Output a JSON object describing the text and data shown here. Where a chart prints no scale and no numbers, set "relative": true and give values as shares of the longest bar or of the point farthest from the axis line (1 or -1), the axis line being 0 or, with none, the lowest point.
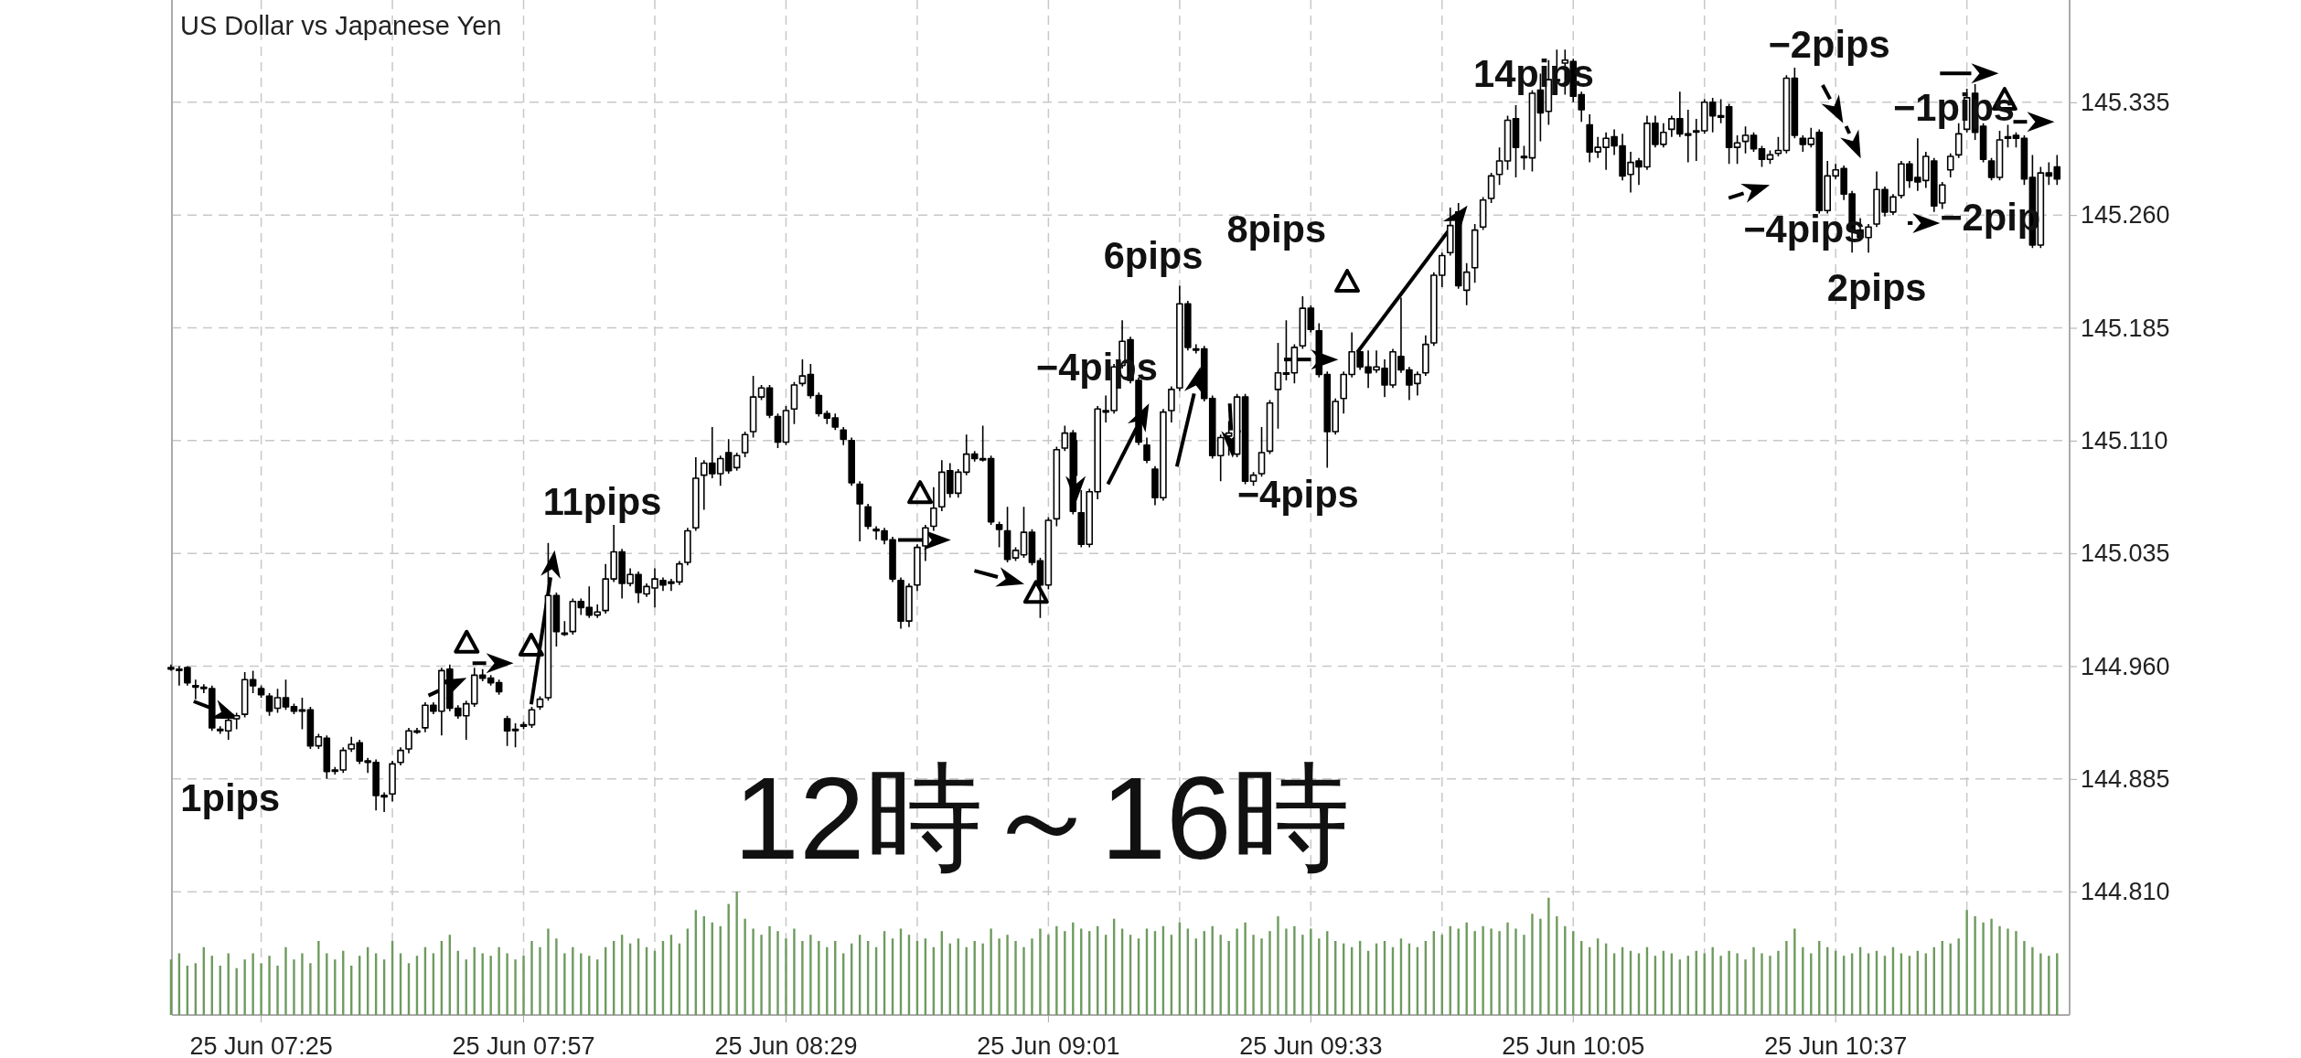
{
  "chart_data": [
    {
      "type": "candlestick",
      "title": "US Dollar vs Japanese Yen",
      "categories": [
        null,
        null,
        null,
        null,
        null,
        null,
        null,
        null,
        null,
        null,
        null,
        "25 Jun 07:25",
        null,
        null,
        null,
        null,
        null,
        null,
        null,
        null,
        null,
        null,
        null,
        null,
        null,
        null,
        null,
        null,
        null,
        null,
        null,
        null,
        null,
        null,
        null,
        null,
        null,
        null,
        null,
        null,
        null,
        null,
        null,
        "25 Jun 07:57",
        null,
        null,
        null,
        null,
        null,
        null,
        null,
        null,
        null,
        null,
        null,
        null,
        null,
        null,
        null,
        null,
        null,
        null,
        null,
        null,
        null,
        null,
        null,
        null,
        null,
        null,
        null,
        null,
        null,
        null,
        null,
        "25 Jun 08:29",
        null,
        null,
        null,
        null,
        null,
        null,
        null,
        null,
        null,
        null,
        null,
        null,
        null,
        null,
        null,
        null,
        null,
        null,
        null,
        null,
        null,
        null,
        null,
        null,
        null,
        null,
        null,
        null,
        null,
        null,
        null,
        "25 Jun 09:01",
        null,
        null,
        null,
        null,
        null,
        null,
        null,
        null,
        null,
        null,
        null,
        null,
        null,
        null,
        null,
        null,
        null,
        null,
        null,
        null,
        null,
        null,
        null,
        null,
        null,
        null,
        null,
        null,
        null,
        null,
        null,
        "25 Jun 09:33",
        null,
        null,
        null,
        null,
        null,
        null,
        null,
        null,
        null,
        null,
        null,
        null,
        null,
        null,
        null,
        null,
        null,
        null,
        null,
        null,
        null,
        null,
        null,
        null,
        null,
        null,
        null,
        null,
        null,
        null,
        null,
        "25 Jun 10:05",
        null,
        null,
        null,
        null,
        null,
        null,
        null,
        null,
        null,
        null,
        null,
        null,
        null,
        null,
        null,
        null,
        null,
        null,
        null,
        null,
        null,
        null,
        null,
        null,
        null,
        null,
        null,
        null,
        null,
        null,
        null,
        "25 Jun 10:37",
        null,
        null,
        null,
        null,
        null,
        null,
        null,
        null,
        null,
        null,
        null,
        null,
        null,
        null,
        null,
        null,
        null,
        null,
        null,
        null,
        null,
        null,
        null,
        null,
        null,
        null,
        null
      ],
      "ohlc": [
        [
          144.959,
          144.961,
          144.957,
          144.959
        ],
        [
          144.958,
          144.96,
          144.947,
          144.958
        ],
        [
          144.959,
          144.96,
          144.947,
          144.949
        ],
        [
          144.947,
          144.951,
          144.938,
          144.947
        ],
        [
          144.946,
          144.948,
          144.942,
          144.946
        ],
        [
          144.945,
          144.947,
          144.917,
          144.919
        ],
        [
          144.918,
          144.92,
          144.915,
          144.918
        ],
        [
          144.917,
          144.926,
          144.911,
          144.924
        ],
        [
          144.925,
          144.929,
          144.918,
          144.927
        ],
        [
          144.928,
          144.956,
          144.926,
          144.951
        ],
        [
          144.951,
          144.957,
          144.942,
          144.947
        ],
        [
          144.945,
          144.947,
          144.939,
          144.941
        ],
        [
          144.94,
          144.942,
          144.927,
          144.93
        ],
        [
          144.932,
          144.945,
          144.929,
          144.939
        ],
        [
          144.939,
          144.951,
          144.931,
          144.933
        ],
        [
          144.933,
          144.935,
          144.928,
          144.93
        ],
        [
          144.931,
          144.939,
          144.918,
          144.931
        ],
        [
          144.931,
          144.933,
          144.905,
          144.907
        ],
        [
          144.907,
          144.915,
          144.905,
          144.913
        ],
        [
          144.912,
          144.914,
          144.885,
          144.89
        ],
        [
          144.891,
          144.893,
          144.888,
          144.891
        ],
        [
          144.891,
          144.906,
          144.889,
          144.904
        ],
        [
          144.905,
          144.913,
          144.903,
          144.908
        ],
        [
          144.909,
          144.911,
          144.895,
          144.897
        ],
        [
          144.897,
          144.899,
          144.889,
          144.897
        ],
        [
          144.896,
          144.898,
          144.864,
          144.874
        ],
        [
          144.874,
          144.876,
          144.863,
          144.874
        ],
        [
          144.875,
          144.897,
          144.87,
          144.895
        ],
        [
          144.896,
          144.906,
          144.894,
          144.904
        ],
        [
          144.905,
          144.919,
          144.902,
          144.917
        ],
        [
          144.917,
          144.919,
          144.915,
          144.917
        ],
        [
          144.919,
          144.936,
          144.916,
          144.934
        ],
        [
          144.934,
          144.936,
          144.928,
          144.93
        ],
        [
          144.93,
          144.959,
          144.914,
          144.957
        ],
        [
          144.958,
          144.961,
          144.93,
          144.932
        ],
        [
          144.932,
          144.934,
          144.925,
          144.927
        ],
        [
          144.927,
          144.937,
          144.911,
          144.935
        ],
        [
          144.935,
          144.959,
          144.933,
          144.954
        ],
        [
          144.954,
          144.958,
          144.95,
          144.952
        ],
        [
          144.952,
          144.954,
          144.947,
          144.949
        ],
        [
          144.949,
          144.951,
          144.941,
          144.943
        ],
        [
          144.925,
          144.927,
          144.907,
          144.917
        ],
        [
          144.918,
          144.922,
          144.906,
          144.918
        ],
        [
          144.921,
          144.923,
          144.918,
          144.92
        ],
        [
          144.921,
          144.933,
          144.919,
          144.931
        ],
        [
          144.933,
          144.94,
          144.931,
          144.938
        ],
        [
          144.939,
          145.042,
          144.937,
          145.007
        ],
        [
          145.007,
          145.009,
          144.973,
          144.983
        ],
        [
          144.982,
          144.99,
          144.98,
          144.982
        ],
        [
          144.983,
          145.005,
          144.981,
          145.003
        ],
        [
          145.003,
          145.005,
          144.994,
          144.999
        ],
        [
          144.999,
          145.013,
          144.992,
          144.994
        ],
        [
          144.994,
          145.001,
          144.992,
          144.996
        ],
        [
          144.997,
          145.028,
          144.995,
          145.018
        ],
        [
          145.018,
          145.054,
          145.016,
          145.036
        ],
        [
          145.036,
          145.038,
          145.005,
          145.015
        ],
        [
          145.015,
          145.025,
          145.013,
          145.021
        ],
        [
          145.021,
          145.023,
          145.002,
          145.009
        ],
        [
          145.008,
          145.015,
          145.006,
          145.013
        ],
        [
          145.012,
          145.025,
          144.999,
          145.018
        ],
        [
          145.017,
          145.019,
          145.01,
          145.014
        ],
        [
          145.015,
          145.018,
          145.01,
          145.016
        ],
        [
          145.016,
          145.03,
          145.014,
          145.028
        ],
        [
          145.029,
          145.052,
          145.027,
          145.05
        ],
        [
          145.052,
          145.099,
          145.05,
          145.085
        ],
        [
          145.087,
          145.097,
          145.064,
          145.095
        ],
        [
          145.095,
          145.119,
          145.085,
          145.088
        ],
        [
          145.088,
          145.1,
          145.08,
          145.098
        ],
        [
          145.102,
          145.111,
          145.088,
          145.09
        ],
        [
          145.092,
          145.102,
          145.09,
          145.1
        ],
        [
          145.102,
          145.116,
          145.099,
          145.114
        ],
        [
          145.116,
          145.153,
          145.112,
          145.139
        ],
        [
          145.139,
          145.147,
          145.137,
          145.145
        ],
        [
          145.145,
          145.147,
          145.125,
          145.127
        ],
        [
          145.126,
          145.128,
          145.105,
          145.109
        ],
        [
          145.109,
          145.133,
          145.107,
          145.13
        ],
        [
          145.131,
          145.149,
          145.121,
          145.147
        ],
        [
          145.148,
          145.164,
          145.146,
          145.153
        ],
        [
          145.154,
          145.161,
          145.138,
          145.14
        ],
        [
          145.14,
          145.142,
          145.126,
          145.128
        ],
        [
          145.128,
          145.13,
          145.121,
          145.125
        ],
        [
          145.125,
          145.128,
          145.117,
          145.119
        ],
        [
          145.117,
          145.119,
          145.107,
          145.111
        ],
        [
          145.11,
          145.112,
          145.08,
          145.082
        ],
        [
          145.081,
          145.083,
          145.043,
          145.068
        ],
        [
          145.066,
          145.068,
          145.051,
          145.053
        ],
        [
          145.051,
          145.053,
          145.044,
          145.05
        ],
        [
          145.05,
          145.052,
          145.041,
          145.044
        ],
        [
          145.044,
          145.046,
          145.016,
          145.018
        ],
        [
          145.017,
          145.019,
          144.985,
          144.99
        ],
        [
          144.99,
          145.015,
          144.986,
          145.013
        ],
        [
          145.014,
          145.041,
          145.01,
          145.039
        ],
        [
          145.04,
          145.054,
          145.03,
          145.052
        ],
        [
          145.053,
          145.079,
          145.05,
          145.065
        ],
        [
          145.066,
          145.097,
          145.063,
          145.089
        ],
        [
          145.09,
          145.095,
          145.072,
          145.075
        ],
        [
          145.075,
          145.091,
          145.072,
          145.089
        ],
        [
          145.089,
          145.114,
          145.087,
          145.101
        ],
        [
          145.101,
          145.103,
          145.096,
          145.098
        ],
        [
          145.098,
          145.12,
          145.096,
          145.098
        ],
        [
          145.098,
          145.1,
          145.054,
          145.056
        ],
        [
          145.054,
          145.056,
          145.039,
          145.051
        ],
        [
          145.05,
          145.066,
          145.029,
          145.031
        ],
        [
          145.032,
          145.039,
          145.03,
          145.037
        ],
        [
          145.034,
          145.066,
          145.032,
          145.049
        ],
        [
          145.049,
          145.051,
          145.027,
          145.029
        ],
        [
          145.03,
          145.032,
          144.992,
          145.014
        ],
        [
          145.014,
          145.059,
          145.011,
          145.057
        ],
        [
          145.058,
          145.106,
          145.053,
          145.104
        ],
        [
          145.105,
          145.12,
          145.103,
          145.115
        ],
        [
          145.115,
          145.117,
          145.061,
          145.063
        ],
        [
          145.062,
          145.077,
          145.039,
          145.041
        ],
        [
          145.041,
          145.078,
          145.039,
          145.076
        ],
        [
          145.076,
          145.133,
          145.071,
          145.131
        ],
        [
          145.129,
          145.14,
          145.122,
          145.13
        ],
        [
          145.13,
          145.161,
          145.128,
          145.159
        ],
        [
          145.16,
          145.19,
          145.158,
          145.176
        ],
        [
          145.177,
          145.179,
          145.148,
          145.15
        ],
        [
          145.15,
          145.152,
          145.107,
          145.109
        ],
        [
          145.107,
          145.112,
          145.095,
          145.097
        ],
        [
          145.091,
          145.093,
          145.067,
          145.072
        ],
        [
          145.072,
          145.131,
          145.07,
          145.129
        ],
        [
          145.13,
          145.146,
          145.122,
          145.144
        ],
        [
          145.145,
          145.213,
          145.143,
          145.201
        ],
        [
          145.201,
          145.203,
          145.17,
          145.172
        ],
        [
          145.171,
          145.174,
          145.168,
          145.171
        ],
        [
          145.171,
          145.173,
          145.136,
          145.138
        ],
        [
          145.138,
          145.14,
          145.098,
          145.1
        ],
        [
          145.1,
          145.114,
          145.083,
          145.112
        ],
        [
          145.113,
          145.123,
          145.1,
          145.115
        ],
        [
          145.101,
          145.141,
          145.099,
          145.139
        ],
        [
          145.139,
          145.141,
          145.081,
          145.083
        ],
        [
          145.083,
          145.089,
          145.08,
          145.087
        ],
        [
          145.088,
          145.119,
          145.086,
          145.102
        ],
        [
          145.103,
          145.137,
          145.101,
          145.135
        ],
        [
          145.144,
          145.175,
          145.118,
          145.155
        ],
        [
          145.155,
          145.19,
          145.15,
          145.155
        ],
        [
          145.155,
          145.174,
          145.148,
          145.172
        ],
        [
          145.173,
          145.206,
          145.171,
          145.198
        ],
        [
          145.198,
          145.2,
          145.182,
          145.184
        ],
        [
          145.183,
          145.188,
          145.152,
          145.154
        ],
        [
          145.154,
          145.156,
          145.092,
          145.116
        ],
        [
          145.116,
          145.138,
          145.114,
          145.136
        ],
        [
          145.138,
          145.156,
          145.128,
          145.154
        ],
        [
          145.154,
          145.182,
          145.152,
          145.169
        ],
        [
          145.169,
          145.171,
          145.157,
          145.159
        ],
        [
          145.159,
          145.17,
          145.145,
          145.155
        ],
        [
          145.157,
          145.17,
          145.155,
          145.159
        ],
        [
          145.158,
          145.164,
          145.139,
          145.147
        ],
        [
          145.147,
          145.171,
          145.145,
          145.169
        ],
        [
          145.166,
          145.205,
          145.155,
          145.157
        ],
        [
          145.157,
          145.159,
          145.137,
          145.147
        ],
        [
          145.148,
          145.156,
          145.14,
          145.154
        ],
        [
          145.155,
          145.18,
          145.153,
          145.174
        ],
        [
          145.175,
          145.222,
          145.173,
          145.22
        ],
        [
          145.22,
          145.235,
          145.212,
          145.233
        ],
        [
          145.235,
          145.265,
          145.233,
          145.253
        ],
        [
          145.262,
          145.268,
          145.211,
          145.213
        ],
        [
          145.21,
          145.228,
          145.2,
          145.222
        ],
        [
          145.225,
          145.254,
          145.215,
          145.25
        ],
        [
          145.252,
          145.272,
          145.25,
          145.27
        ],
        [
          145.271,
          145.288,
          145.268,
          145.286
        ],
        [
          145.287,
          145.305,
          145.28,
          145.296
        ],
        [
          145.296,
          145.326,
          145.29,
          145.323
        ],
        [
          145.324,
          145.333,
          145.285,
          145.305
        ],
        [
          145.299,
          145.306,
          145.29,
          145.299
        ],
        [
          145.298,
          145.343,
          145.289,
          145.341
        ],
        [
          145.343,
          145.354,
          145.309,
          145.328
        ],
        [
          145.329,
          145.363,
          145.32,
          145.35
        ],
        [
          145.35,
          145.37,
          145.34,
          145.349
        ],
        [
          145.361,
          145.37,
          145.34,
          145.363
        ],
        [
          145.362,
          145.364,
          145.335,
          145.339
        ],
        [
          145.34,
          145.342,
          145.322,
          145.33
        ],
        [
          145.32,
          145.327,
          145.295,
          145.302
        ],
        [
          145.302,
          145.312,
          145.298,
          145.305
        ],
        [
          145.305,
          145.315,
          145.29,
          145.311
        ],
        [
          145.312,
          145.317,
          145.3,
          145.306
        ],
        [
          145.306,
          145.314,
          145.283,
          145.286
        ],
        [
          145.287,
          145.302,
          145.275,
          145.295
        ],
        [
          145.296,
          145.298,
          145.28,
          145.292
        ],
        [
          145.292,
          145.326,
          145.29,
          145.321
        ],
        [
          145.321,
          145.326,
          145.305,
          145.307
        ],
        [
          145.307,
          145.321,
          145.305,
          145.315
        ],
        [
          145.317,
          145.326,
          145.312,
          145.324
        ],
        [
          145.324,
          145.342,
          145.312,
          145.314
        ],
        [
          145.313,
          145.33,
          145.295,
          145.314
        ],
        [
          145.316,
          145.324,
          145.296,
          145.316
        ],
        [
          145.316,
          145.337,
          145.314,
          145.335
        ],
        [
          145.335,
          145.338,
          145.315,
          145.326
        ],
        [
          145.326,
          145.337,
          145.321,
          145.325
        ],
        [
          145.332,
          145.334,
          145.294,
          145.305
        ],
        [
          145.305,
          145.313,
          145.294,
          145.308
        ],
        [
          145.309,
          145.319,
          145.301,
          145.313
        ],
        [
          145.313,
          145.315,
          145.302,
          145.304
        ],
        [
          145.304,
          145.306,
          145.292,
          145.297
        ],
        [
          145.297,
          145.303,
          145.294,
          145.3
        ],
        [
          145.301,
          145.312,
          145.299,
          145.303
        ],
        [
          145.303,
          145.353,
          145.301,
          145.351
        ],
        [
          145.351,
          145.358,
          145.311,
          145.313
        ],
        [
          145.311,
          145.313,
          145.302,
          145.307
        ],
        [
          145.307,
          145.318,
          145.305,
          145.311
        ],
        [
          145.315,
          145.317,
          145.261,
          145.263
        ],
        [
          145.263,
          145.296,
          145.261,
          145.286
        ],
        [
          145.286,
          145.294,
          145.284,
          145.29
        ],
        [
          145.291,
          145.293,
          145.27,
          145.274
        ],
        [
          145.274,
          145.276,
          145.235,
          145.25
        ],
        [
          145.25,
          145.258,
          145.243,
          145.245
        ],
        [
          145.245,
          145.254,
          145.235,
          145.252
        ],
        [
          145.254,
          145.289,
          145.252,
          145.277
        ],
        [
          145.277,
          145.279,
          145.259,
          145.262
        ],
        [
          145.262,
          145.274,
          145.26,
          145.272
        ],
        [
          145.273,
          145.296,
          145.271,
          145.294
        ],
        [
          145.294,
          145.296,
          145.278,
          145.283
        ],
        [
          145.285,
          145.311,
          145.276,
          145.282
        ],
        [
          145.283,
          145.302,
          145.278,
          145.299
        ],
        [
          145.296,
          145.298,
          145.262,
          145.266
        ],
        [
          145.268,
          145.282,
          145.264,
          145.28
        ],
        [
          145.29,
          145.301,
          145.285,
          145.299
        ],
        [
          145.3,
          145.321,
          145.298,
          145.314
        ],
        [
          145.317,
          145.344,
          145.315,
          145.338
        ],
        [
          145.341,
          145.347,
          145.31,
          145.315
        ],
        [
          145.319,
          145.321,
          145.295,
          145.297
        ],
        [
          145.296,
          145.298,
          145.283,
          145.285
        ],
        [
          145.285,
          145.316,
          145.283,
          145.31
        ],
        [
          145.311,
          145.32,
          145.305,
          145.312
        ],
        [
          145.313,
          145.315,
          145.305,
          145.311
        ],
        [
          145.311,
          145.313,
          145.28,
          145.284
        ],
        [
          145.285,
          145.3,
          145.238,
          145.24
        ],
        [
          145.24,
          145.292,
          145.238,
          145.288
        ],
        [
          145.288,
          145.295,
          145.28,
          145.286
        ],
        [
          145.292,
          145.3,
          145.28,
          145.284
        ]
      ],
      "ylim": [
        144.728,
        145.403
      ],
      "yticks": [
        {
          "value": 144.81,
          "label": "144.810"
        },
        {
          "value": 144.885,
          "label": "144.885"
        },
        {
          "value": 144.96,
          "label": "144.960"
        },
        {
          "value": 145.035,
          "label": "145.035"
        },
        {
          "value": 145.11,
          "label": "145.110"
        },
        {
          "value": 145.185,
          "label": "145.185"
        },
        {
          "value": 145.26,
          "label": "145.260"
        },
        {
          "value": 145.335,
          "label": "145.335"
        }
      ],
      "grid": true,
      "annotations": [
        "1pips",
        "11pips",
        "6pips",
        "8pips",
        "−4pips",
        "−4pips",
        "14pips",
        "−2pips",
        "−1pips",
        "−4pips",
        "2pips",
        "−2pip",
        "12時～16時"
      ]
    },
    {
      "type": "bar",
      "relative": true,
      "tick_labels": false,
      "color": "#6e9b5e",
      "categories": [
        null,
        null,
        null,
        null,
        null,
        null,
        null,
        null,
        null,
        null,
        null,
        null,
        null,
        null,
        null,
        null,
        null,
        null,
        null,
        null,
        null,
        null,
        null,
        null,
        null,
        null,
        null,
        null,
        null,
        null,
        null,
        null,
        null,
        null,
        null,
        null,
        null,
        null,
        null,
        null,
        null,
        null,
        null,
        null,
        null,
        null,
        null,
        null,
        null,
        null,
        null,
        null,
        null,
        null,
        null,
        null,
        null,
        null,
        null,
        null,
        null,
        null,
        null,
        null,
        null,
        null,
        null,
        null,
        null,
        null,
        null,
        null,
        null,
        null,
        null,
        null,
        null,
        null,
        null,
        null,
        null,
        null,
        null,
        null,
        null,
        null,
        null,
        null,
        null,
        null,
        null,
        null,
        null,
        null,
        null,
        null,
        null,
        null,
        null,
        null,
        null,
        null,
        null,
        null,
        null,
        null,
        null,
        null,
        null,
        null,
        null,
        null,
        null,
        null,
        null,
        null,
        null,
        null,
        null,
        null,
        null,
        null,
        null,
        null,
        null,
        null,
        null,
        null,
        null,
        null,
        null,
        null,
        null,
        null,
        null,
        null,
        null,
        null,
        null,
        null,
        null,
        null,
        null,
        null,
        null,
        null,
        null,
        null,
        null,
        null,
        null,
        null,
        null,
        null,
        null,
        null,
        null,
        null,
        null,
        null,
        null,
        null,
        null,
        null,
        null,
        null,
        null,
        null,
        null,
        null,
        null,
        null,
        null,
        null,
        null,
        null,
        null,
        null,
        null,
        null,
        null,
        null,
        null,
        null,
        null,
        null,
        null,
        null,
        null,
        null,
        null,
        null,
        null,
        null,
        null,
        null,
        null,
        null,
        null,
        null,
        null,
        null,
        null,
        null,
        null,
        null,
        null,
        null,
        null,
        null,
        null,
        null,
        null,
        null,
        null,
        null,
        null,
        null,
        null,
        null,
        null,
        null,
        null,
        null,
        null,
        null,
        null,
        null,
        null,
        null,
        null
      ],
      "values": [
        0.45,
        0.5,
        0.4,
        0.42,
        0.55,
        0.48,
        0.4,
        0.5,
        0.38,
        0.45,
        0.5,
        0.42,
        0.48,
        0.4,
        0.55,
        0.45,
        0.5,
        0.42,
        0.6,
        0.5,
        0.45,
        0.52,
        0.4,
        0.48,
        0.55,
        0.5,
        0.45,
        0.6,
        0.5,
        0.42,
        0.48,
        0.55,
        0.5,
        0.6,
        0.65,
        0.52,
        0.45,
        0.55,
        0.5,
        0.48,
        0.55,
        0.5,
        0.45,
        0.48,
        0.6,
        0.55,
        0.7,
        0.62,
        0.5,
        0.55,
        0.5,
        0.48,
        0.45,
        0.55,
        0.6,
        0.65,
        0.58,
        0.62,
        0.55,
        0.52,
        0.6,
        0.65,
        0.58,
        0.7,
        0.85,
        0.8,
        0.75,
        0.72,
        0.9,
        1,
        0.78,
        0.7,
        0.65,
        0.72,
        0.68,
        0.62,
        0.7,
        0.6,
        0.65,
        0.6,
        0.55,
        0.6,
        0.5,
        0.58,
        0.65,
        0.6,
        0.55,
        0.68,
        0.62,
        0.7,
        0.65,
        0.6,
        0.62,
        0.55,
        0.68,
        0.58,
        0.62,
        0.55,
        0.6,
        0.58,
        0.7,
        0.62,
        0.65,
        0.6,
        0.55,
        0.62,
        0.7,
        0.65,
        0.72,
        0.68,
        0.75,
        0.7,
        0.68,
        0.72,
        0.65,
        0.78,
        0.7,
        0.65,
        0.62,
        0.7,
        0.68,
        0.72,
        0.65,
        0.75,
        0.7,
        0.62,
        0.68,
        0.72,
        0.65,
        0.6,
        0.7,
        0.75,
        0.65,
        0.62,
        0.68,
        0.8,
        0.7,
        0.72,
        0.65,
        0.7,
        0.62,
        0.68,
        0.6,
        0.58,
        0.55,
        0.6,
        0.52,
        0.58,
        0.6,
        0.55,
        0.62,
        0.58,
        0.55,
        0.6,
        0.68,
        0.65,
        0.72,
        0.7,
        0.75,
        0.68,
        0.72,
        0.7,
        0.68,
        0.75,
        0.7,
        0.65,
        0.82,
        0.78,
        0.95,
        0.8,
        0.72,
        0.68,
        0.6,
        0.55,
        0.62,
        0.58,
        0.5,
        0.55,
        0.52,
        0.5,
        0.55,
        0.48,
        0.52,
        0.5,
        0.45,
        0.48,
        0.52,
        0.5,
        0.55,
        0.48,
        0.52,
        0.5,
        0.45,
        0.55,
        0.5,
        0.48,
        0.52,
        0.6,
        0.7,
        0.55,
        0.5,
        0.6,
        0.55,
        0.52,
        0.48,
        0.5,
        0.55,
        0.5,
        0.52,
        0.48,
        0.55,
        0.5,
        0.48,
        0.52,
        0.5,
        0.55,
        0.6,
        0.58,
        0.62,
        0.85,
        0.8,
        0.75,
        0.78,
        0.72,
        0.7,
        0.68,
        0.6,
        0.55,
        0.5,
        0.48,
        0.5
      ]
    }
  ]
}
